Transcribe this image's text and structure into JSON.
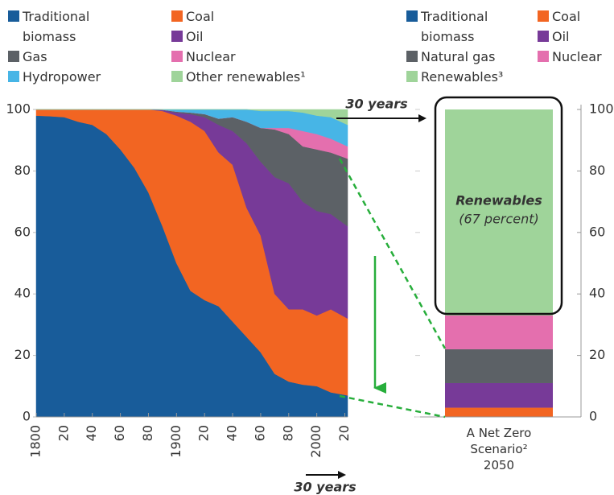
{
  "chart_data": [
    {
      "type": "stacked_area",
      "x": [
        1800,
        1810,
        1820,
        1830,
        1840,
        1850,
        1860,
        1870,
        1880,
        1890,
        1900,
        1910,
        1920,
        1930,
        1940,
        1950,
        1960,
        1970,
        1980,
        1990,
        2000,
        2010,
        2022
      ],
      "xlim": [
        1800,
        2022
      ],
      "xticks": [
        {
          "value": 1800,
          "label": "1800"
        },
        {
          "value": 1820,
          "label": "20"
        },
        {
          "value": 1840,
          "label": "40"
        },
        {
          "value": 1860,
          "label": "60"
        },
        {
          "value": 1880,
          "label": "80"
        },
        {
          "value": 1900,
          "label": "1900"
        },
        {
          "value": 1920,
          "label": "20"
        },
        {
          "value": 1940,
          "label": "40"
        },
        {
          "value": 1960,
          "label": "60"
        },
        {
          "value": 1980,
          "label": "80"
        },
        {
          "value": 2000,
          "label": "2000"
        },
        {
          "value": 2020,
          "label": "20"
        }
      ],
      "ylim": [
        0,
        100
      ],
      "yticks": [
        0,
        20,
        40,
        60,
        80,
        100
      ],
      "series": [
        {
          "name": "Traditional biomass",
          "color": "#185c9a",
          "values": [
            98,
            97.8,
            97.5,
            96,
            95,
            92,
            87,
            81,
            73,
            62,
            50,
            41,
            38,
            36,
            31,
            26,
            21,
            14,
            11.5,
            10.5,
            10,
            8,
            7
          ]
        },
        {
          "name": "Coal",
          "color": "#f26522",
          "values": [
            2,
            2.2,
            2.5,
            4,
            5,
            8,
            13,
            19,
            27,
            37.5,
            48,
            55,
            55,
            50,
            51,
            42,
            38,
            26,
            23.5,
            24.5,
            23,
            27,
            25
          ]
        },
        {
          "name": "Oil",
          "color": "#773a98",
          "values": [
            0,
            0,
            0,
            0,
            0,
            0,
            0,
            0,
            0,
            0.3,
            1,
            2.5,
            4.5,
            9,
            11,
            21,
            24,
            38,
            41,
            35,
            34,
            31,
            30
          ]
        },
        {
          "name": "Gas",
          "color": "#5c6166",
          "values": [
            0,
            0,
            0,
            0,
            0,
            0,
            0,
            0,
            0,
            0.1,
            0.3,
            0.5,
            1,
            2,
            4.5,
            7,
            11,
            15.5,
            16,
            18,
            20,
            20,
            22
          ]
        },
        {
          "name": "Nuclear",
          "color": "#e46fae",
          "values": [
            0,
            0,
            0,
            0,
            0,
            0,
            0,
            0,
            0,
            0,
            0,
            0,
            0,
            0,
            0,
            0,
            0,
            0.5,
            2,
            5,
            5,
            4.5,
            4
          ]
        },
        {
          "name": "Hydropower",
          "color": "#47b5e6",
          "values": [
            0,
            0,
            0,
            0,
            0,
            0,
            0,
            0,
            0,
            0.1,
            0.7,
            1,
            1.5,
            3,
            2.5,
            4,
            5.5,
            5.5,
            5.5,
            6,
            6,
            7,
            7
          ]
        },
        {
          "name": "Other renewables¹",
          "color": "#9fd49a",
          "values": [
            0,
            0,
            0,
            0,
            0,
            0,
            0,
            0,
            0,
            0,
            0,
            0,
            0,
            0,
            0,
            0,
            0.5,
            0.5,
            0.5,
            1,
            2,
            2.5,
            5
          ]
        }
      ],
      "annotations": [
        "30 years",
        "30 years"
      ]
    },
    {
      "type": "stacked_bar",
      "categories": [
        "A Net Zero Scenario² 2050"
      ],
      "ylim": [
        0,
        100
      ],
      "yticks": [
        0,
        20,
        40,
        60,
        80,
        100
      ],
      "series": [
        {
          "name": "Traditional biomass",
          "color": "#185c9a",
          "values": [
            0
          ]
        },
        {
          "name": "Coal",
          "color": "#f26522",
          "values": [
            3
          ]
        },
        {
          "name": "Oil",
          "color": "#773a98",
          "values": [
            8
          ]
        },
        {
          "name": "Natural gas",
          "color": "#5c6166",
          "values": [
            11
          ]
        },
        {
          "name": "Nuclear",
          "color": "#e46fae",
          "values": [
            11
          ]
        },
        {
          "name": "Renewables³",
          "color": "#9fd49a",
          "values": [
            67
          ]
        }
      ],
      "annotations": [
        "Renewables",
        "(67 percent)"
      ]
    }
  ]
}
